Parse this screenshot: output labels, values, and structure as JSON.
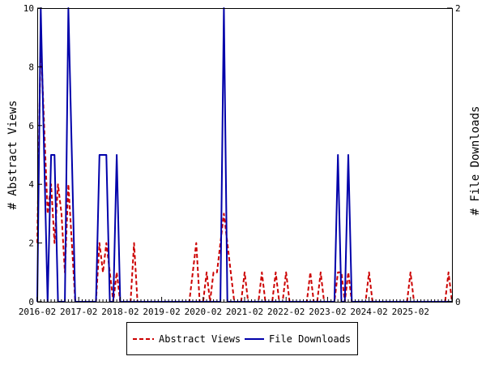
{
  "chart_data": {
    "type": "line",
    "ylabel_left": "# Abstract Views",
    "ylabel_right": "# File Downloads",
    "ylim_left": [
      0,
      10
    ],
    "ylim_right": [
      0,
      2
    ],
    "y_ticks_left": [
      "0",
      "2",
      "4",
      "6",
      "8",
      "10"
    ],
    "y_ticks_right": [
      "0",
      "2"
    ],
    "x_ticks": [
      "2016-02",
      "2017-02",
      "2018-02",
      "2019-02",
      "2020-02",
      "2021-02",
      "2022-02",
      "2023-02",
      "2024-02",
      "2025-02"
    ],
    "legend_position": "bottom",
    "grid": false,
    "series": [
      {
        "name": "Abstract Views",
        "axis": "left",
        "color": "#cc0000",
        "style": "dashed",
        "points": [
          [
            "2016-02",
            2
          ],
          [
            "2016-03",
            9
          ],
          [
            "2016-04",
            6
          ],
          [
            "2016-05",
            3
          ],
          [
            "2016-06",
            4
          ],
          [
            "2016-07",
            2
          ],
          [
            "2016-08",
            4
          ],
          [
            "2016-09",
            3
          ],
          [
            "2016-10",
            1
          ],
          [
            "2016-11",
            4
          ],
          [
            "2016-12",
            2
          ],
          [
            "2017-01",
            0
          ],
          [
            "2017-02",
            0
          ],
          [
            "2017-03",
            0
          ],
          [
            "2017-04",
            0
          ],
          [
            "2017-05",
            0
          ],
          [
            "2017-06",
            0
          ],
          [
            "2017-07",
            0
          ],
          [
            "2017-08",
            2
          ],
          [
            "2017-09",
            1
          ],
          [
            "2017-10",
            2
          ],
          [
            "2017-11",
            1
          ],
          [
            "2017-12",
            0
          ],
          [
            "2018-01",
            1
          ],
          [
            "2018-02",
            0
          ],
          [
            "2018-03",
            0
          ],
          [
            "2018-04",
            0
          ],
          [
            "2018-05",
            0
          ],
          [
            "2018-06",
            2
          ],
          [
            "2018-07",
            0
          ],
          [
            "2018-08",
            0
          ],
          [
            "2018-09",
            0
          ],
          [
            "2018-10",
            0
          ],
          [
            "2018-11",
            0
          ],
          [
            "2018-12",
            0
          ],
          [
            "2019-01",
            0
          ],
          [
            "2019-02",
            0
          ],
          [
            "2019-03",
            0
          ],
          [
            "2019-04",
            0
          ],
          [
            "2019-05",
            0
          ],
          [
            "2019-06",
            0
          ],
          [
            "2019-07",
            0
          ],
          [
            "2019-08",
            0
          ],
          [
            "2019-09",
            0
          ],
          [
            "2019-10",
            0
          ],
          [
            "2019-11",
            1
          ],
          [
            "2019-12",
            2
          ],
          [
            "2020-01",
            0
          ],
          [
            "2020-02",
            0
          ],
          [
            "2020-03",
            1
          ],
          [
            "2020-04",
            0
          ],
          [
            "2020-05",
            1
          ],
          [
            "2020-06",
            1
          ],
          [
            "2020-07",
            2
          ],
          [
            "2020-08",
            3
          ],
          [
            "2020-09",
            2
          ],
          [
            "2020-10",
            1
          ],
          [
            "2020-11",
            0
          ],
          [
            "2020-12",
            0
          ],
          [
            "2021-01",
            0
          ],
          [
            "2021-02",
            1
          ],
          [
            "2021-03",
            0
          ],
          [
            "2021-04",
            0
          ],
          [
            "2021-05",
            0
          ],
          [
            "2021-06",
            0
          ],
          [
            "2021-07",
            1
          ],
          [
            "2021-08",
            0
          ],
          [
            "2021-09",
            0
          ],
          [
            "2021-10",
            0
          ],
          [
            "2021-11",
            1
          ],
          [
            "2021-12",
            0
          ],
          [
            "2022-01",
            0
          ],
          [
            "2022-02",
            1
          ],
          [
            "2022-03",
            0
          ],
          [
            "2022-04",
            0
          ],
          [
            "2022-05",
            0
          ],
          [
            "2022-06",
            0
          ],
          [
            "2022-07",
            0
          ],
          [
            "2022-08",
            0
          ],
          [
            "2022-09",
            1
          ],
          [
            "2022-10",
            0
          ],
          [
            "2022-11",
            0
          ],
          [
            "2022-12",
            1
          ],
          [
            "2023-01",
            0
          ],
          [
            "2023-02",
            0
          ],
          [
            "2023-03",
            0
          ],
          [
            "2023-04",
            0
          ],
          [
            "2023-05",
            1
          ],
          [
            "2023-06",
            1
          ],
          [
            "2023-07",
            0
          ],
          [
            "2023-08",
            1
          ],
          [
            "2023-09",
            0
          ],
          [
            "2023-10",
            0
          ],
          [
            "2023-11",
            0
          ],
          [
            "2023-12",
            0
          ],
          [
            "2024-01",
            0
          ],
          [
            "2024-02",
            1
          ],
          [
            "2024-03",
            0
          ],
          [
            "2024-04",
            0
          ],
          [
            "2024-05",
            0
          ],
          [
            "2024-06",
            0
          ],
          [
            "2024-07",
            0
          ],
          [
            "2024-08",
            0
          ],
          [
            "2024-09",
            0
          ],
          [
            "2024-10",
            0
          ],
          [
            "2024-11",
            0
          ],
          [
            "2024-12",
            0
          ],
          [
            "2025-01",
            0
          ],
          [
            "2025-02",
            1
          ],
          [
            "2025-03",
            0
          ],
          [
            "2025-04",
            0
          ],
          [
            "2025-05",
            0
          ],
          [
            "2025-06",
            0
          ],
          [
            "2025-07",
            0
          ],
          [
            "2025-08",
            0
          ],
          [
            "2025-09",
            0
          ],
          [
            "2025-10",
            0
          ],
          [
            "2025-11",
            0
          ],
          [
            "2025-12",
            0
          ],
          [
            "2026-01",
            1
          ],
          [
            "2026-02",
            0
          ]
        ]
      },
      {
        "name": "File Downloads",
        "axis": "right",
        "color": "#0000aa",
        "style": "solid",
        "points": [
          [
            "2016-02",
            0
          ],
          [
            "2016-03",
            2
          ],
          [
            "2016-04",
            1
          ],
          [
            "2016-05",
            0
          ],
          [
            "2016-06",
            1
          ],
          [
            "2016-07",
            1
          ],
          [
            "2016-08",
            0
          ],
          [
            "2016-09",
            0
          ],
          [
            "2016-10",
            0
          ],
          [
            "2016-11",
            2
          ],
          [
            "2016-12",
            1
          ],
          [
            "2017-01",
            0
          ],
          [
            "2017-02",
            0
          ],
          [
            "2017-03",
            0
          ],
          [
            "2017-04",
            0
          ],
          [
            "2017-05",
            0
          ],
          [
            "2017-06",
            0
          ],
          [
            "2017-07",
            0
          ],
          [
            "2017-08",
            1
          ],
          [
            "2017-09",
            1
          ],
          [
            "2017-10",
            1
          ],
          [
            "2017-11",
            0
          ],
          [
            "2017-12",
            0
          ],
          [
            "2018-01",
            1
          ],
          [
            "2018-02",
            0
          ],
          [
            "2018-03",
            0
          ],
          [
            "2018-04",
            0
          ],
          [
            "2018-05",
            0
          ],
          [
            "2018-06",
            0
          ],
          [
            "2018-07",
            0
          ],
          [
            "2018-08",
            0
          ],
          [
            "2018-09",
            0
          ],
          [
            "2018-10",
            0
          ],
          [
            "2018-11",
            0
          ],
          [
            "2018-12",
            0
          ],
          [
            "2019-01",
            0
          ],
          [
            "2019-02",
            0
          ],
          [
            "2019-03",
            0
          ],
          [
            "2019-04",
            0
          ],
          [
            "2019-05",
            0
          ],
          [
            "2019-06",
            0
          ],
          [
            "2019-07",
            0
          ],
          [
            "2019-08",
            0
          ],
          [
            "2019-09",
            0
          ],
          [
            "2019-10",
            0
          ],
          [
            "2019-11",
            0
          ],
          [
            "2019-12",
            0
          ],
          [
            "2020-01",
            0
          ],
          [
            "2020-02",
            0
          ],
          [
            "2020-03",
            0
          ],
          [
            "2020-04",
            0
          ],
          [
            "2020-05",
            0
          ],
          [
            "2020-06",
            0
          ],
          [
            "2020-07",
            0
          ],
          [
            "2020-08",
            2
          ],
          [
            "2020-09",
            0
          ],
          [
            "2020-10",
            0
          ],
          [
            "2020-11",
            0
          ],
          [
            "2020-12",
            0
          ],
          [
            "2021-01",
            0
          ],
          [
            "2021-02",
            0
          ],
          [
            "2021-03",
            0
          ],
          [
            "2021-04",
            0
          ],
          [
            "2021-05",
            0
          ],
          [
            "2021-06",
            0
          ],
          [
            "2021-07",
            0
          ],
          [
            "2021-08",
            0
          ],
          [
            "2021-09",
            0
          ],
          [
            "2021-10",
            0
          ],
          [
            "2021-11",
            0
          ],
          [
            "2021-12",
            0
          ],
          [
            "2022-01",
            0
          ],
          [
            "2022-02",
            0
          ],
          [
            "2022-03",
            0
          ],
          [
            "2022-04",
            0
          ],
          [
            "2022-05",
            0
          ],
          [
            "2022-06",
            0
          ],
          [
            "2022-07",
            0
          ],
          [
            "2022-08",
            0
          ],
          [
            "2022-09",
            0
          ],
          [
            "2022-10",
            0
          ],
          [
            "2022-11",
            0
          ],
          [
            "2022-12",
            0
          ],
          [
            "2023-01",
            0
          ],
          [
            "2023-02",
            0
          ],
          [
            "2023-03",
            0
          ],
          [
            "2023-04",
            0
          ],
          [
            "2023-05",
            1
          ],
          [
            "2023-06",
            0
          ],
          [
            "2023-07",
            0
          ],
          [
            "2023-08",
            1
          ],
          [
            "2023-09",
            0
          ],
          [
            "2023-10",
            0
          ],
          [
            "2023-11",
            0
          ],
          [
            "2023-12",
            0
          ],
          [
            "2024-01",
            0
          ],
          [
            "2024-02",
            0
          ],
          [
            "2024-03",
            0
          ],
          [
            "2024-04",
            0
          ],
          [
            "2024-05",
            0
          ],
          [
            "2024-06",
            0
          ],
          [
            "2024-07",
            0
          ],
          [
            "2024-08",
            0
          ],
          [
            "2024-09",
            0
          ],
          [
            "2024-10",
            0
          ],
          [
            "2024-11",
            0
          ],
          [
            "2024-12",
            0
          ],
          [
            "2025-01",
            0
          ],
          [
            "2025-02",
            0
          ],
          [
            "2025-03",
            0
          ],
          [
            "2025-04",
            0
          ],
          [
            "2025-05",
            0
          ],
          [
            "2025-06",
            0
          ],
          [
            "2025-07",
            0
          ],
          [
            "2025-08",
            0
          ],
          [
            "2025-09",
            0
          ],
          [
            "2025-10",
            0
          ],
          [
            "2025-11",
            0
          ],
          [
            "2025-12",
            0
          ],
          [
            "2026-01",
            0
          ],
          [
            "2026-02",
            0
          ]
        ]
      }
    ]
  }
}
